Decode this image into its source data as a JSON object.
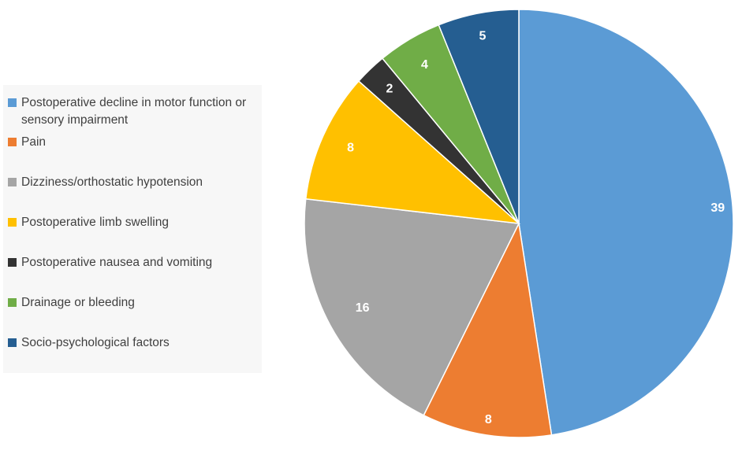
{
  "chart_data": {
    "type": "pie",
    "title": "",
    "legend_position": "left",
    "categories": [
      "Postoperative decline in motor function or sensory impairment",
      "Pain",
      "Dizziness/orthostatic hypotension",
      "Postoperative limb swelling",
      "Postoperative nausea and vomiting",
      "Drainage or bleeding",
      "Socio-psychological factors"
    ],
    "values": [
      39,
      8,
      16,
      8,
      2,
      4,
      5
    ],
    "colors": [
      "#5b9bd5",
      "#ed7d31",
      "#a5a5a5",
      "#ffc000",
      "#333333",
      "#70ad47",
      "#255e91"
    ],
    "data_labels": [
      "39",
      "8",
      "16",
      "8",
      "2",
      "4",
      "5"
    ]
  }
}
